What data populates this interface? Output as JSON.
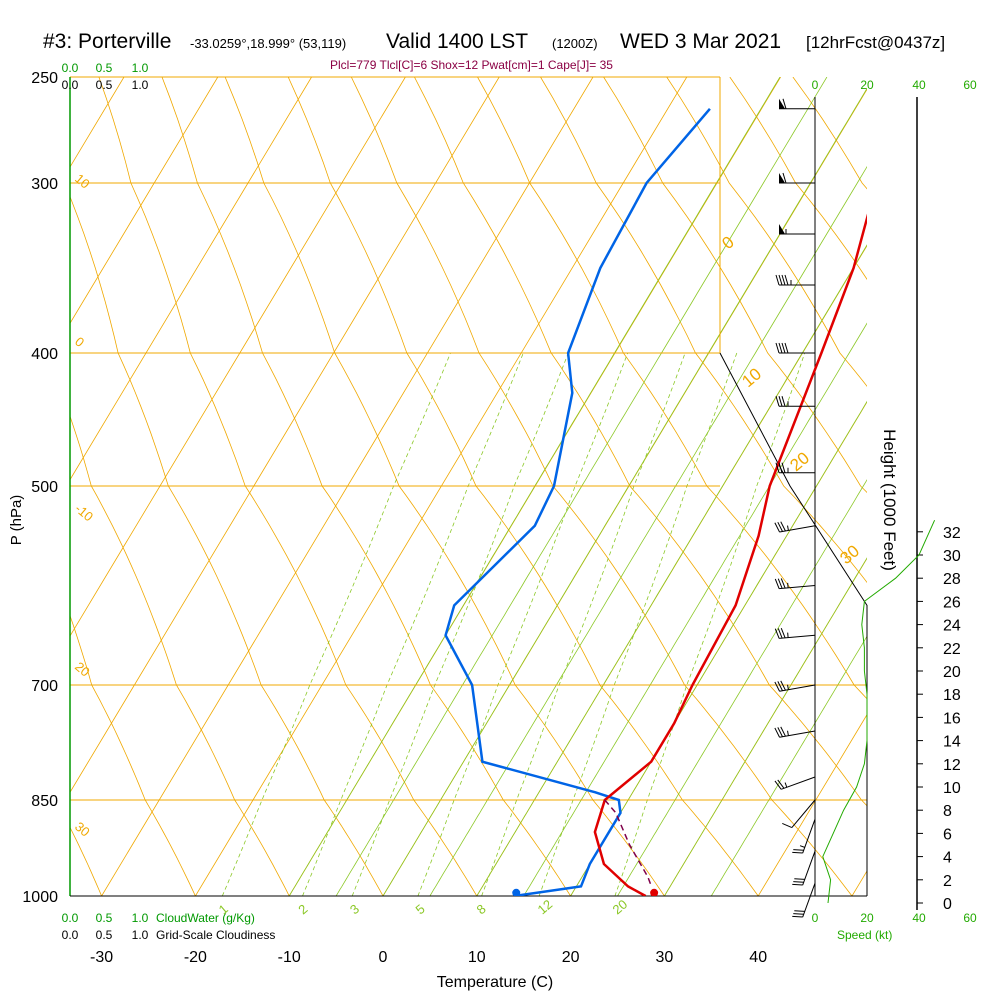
{
  "header": {
    "station": "#3: Porterville",
    "coords": "-33.0259°,18.999° (53,119)",
    "valid": "Valid 1400 LST",
    "zulu": "(1200Z)",
    "date": "WED 3 Mar 2021",
    "forecast": "[12hrFcst@0437z]",
    "params": "Plcl=779 Tlcl[C]=6 Shox=12 Pwat[cm]=1 Cape[J]= 35"
  },
  "colors": {
    "isotherm": "#f0a800",
    "dry_adiabat": "#f0a800",
    "moist_adiabat": "#8cc828",
    "mixing_ratio": "#8cc828",
    "temperature": "#e00000",
    "dewpoint": "#0064e6",
    "parcel": "#80004a",
    "cloud_scale": "#009900",
    "speed_axis": "#22aa00"
  },
  "chart_data": {
    "type": "skew-t",
    "xlabel": "Temperature (C)",
    "ylabel": "P (hPa)",
    "y2label": "Height (1000 Feet)",
    "xticks": [
      "-30",
      "-20",
      "-10",
      "0",
      "10",
      "20",
      "30",
      "40"
    ],
    "xtick_values": [
      -30,
      -20,
      -10,
      0,
      10,
      20,
      30,
      40
    ],
    "pressure_levels": [
      250,
      300,
      400,
      500,
      700,
      850,
      1000
    ],
    "pressure_labels": [
      "250",
      "300",
      "400",
      "500",
      "700",
      "850",
      "1000"
    ],
    "height_labels": [
      "0",
      "2",
      "4",
      "6",
      "8",
      "10",
      "12",
      "14",
      "16",
      "18",
      "20",
      "22",
      "24",
      "26",
      "28",
      "30",
      "32"
    ],
    "dry_adiabat_labels": [
      "-10",
      "0",
      "10",
      "20",
      "30"
    ],
    "dry_adiabat_label_values": [
      -10,
      0,
      10,
      20,
      30
    ],
    "right_adiabat_labels": [
      "0",
      "10",
      "20",
      "30"
    ],
    "mixing_ratio_labels": [
      "1",
      "2",
      "3",
      "5",
      "8",
      "12",
      "20"
    ],
    "mixing_ratio_label_temps": [
      -16,
      -7.5,
      -2,
      5,
      11.5,
      18,
      26
    ],
    "cloudwater_label": "CloudWater (g/Kg)",
    "cloudiness_label": "Grid-Scale Cloudiness",
    "cloud_scale_ticks": [
      "0.0",
      "0.5",
      "1.0"
    ],
    "speed_label": "Speed (kt)",
    "speed_ticks": [
      "0",
      "20",
      "40",
      "60"
    ],
    "temperature": {
      "name": "Temperature",
      "points": [
        [
          265,
          4
        ],
        [
          300,
          7
        ],
        [
          350,
          10
        ],
        [
          400,
          12
        ],
        [
          500,
          15
        ],
        [
          550,
          17
        ],
        [
          620,
          19
        ],
        [
          700,
          19.5
        ],
        [
          750,
          20
        ],
        [
          800,
          20
        ],
        [
          850,
          17.5
        ],
        [
          900,
          18.5
        ],
        [
          950,
          21.5
        ],
        [
          985,
          25.5
        ],
        [
          1000,
          28
        ]
      ]
    },
    "dewpoint": {
      "name": "Dewpoint",
      "points": [
        [
          265,
          -15.5
        ],
        [
          300,
          -17.5
        ],
        [
          350,
          -17
        ],
        [
          400,
          -15
        ],
        [
          430,
          -12
        ],
        [
          500,
          -8
        ],
        [
          540,
          -7.5
        ],
        [
          620,
          -11
        ],
        [
          650,
          -10
        ],
        [
          700,
          -4
        ],
        [
          800,
          2
        ],
        [
          840,
          16
        ],
        [
          850,
          19
        ],
        [
          870,
          20
        ],
        [
          950,
          20
        ],
        [
          985,
          20.5
        ],
        [
          1000,
          14
        ]
      ]
    },
    "parcel": {
      "name": "Parcel",
      "points": [
        [
          850,
          17.5
        ],
        [
          870,
          19.5
        ],
        [
          920,
          23
        ],
        [
          970,
          27
        ],
        [
          985,
          28
        ]
      ]
    },
    "surface_temperature": 28.7,
    "surface_dewpoint": 14,
    "wind_barbs": [
      {
        "p": 265,
        "dir": 270,
        "kt": 60
      },
      {
        "p": 300,
        "dir": 270,
        "kt": 60
      },
      {
        "p": 330,
        "dir": 270,
        "kt": 55
      },
      {
        "p": 360,
        "dir": 270,
        "kt": 45
      },
      {
        "p": 400,
        "dir": 270,
        "kt": 40
      },
      {
        "p": 440,
        "dir": 270,
        "kt": 35
      },
      {
        "p": 490,
        "dir": 270,
        "kt": 35
      },
      {
        "p": 540,
        "dir": 260,
        "kt": 35
      },
      {
        "p": 600,
        "dir": 265,
        "kt": 35
      },
      {
        "p": 650,
        "dir": 265,
        "kt": 35
      },
      {
        "p": 700,
        "dir": 260,
        "kt": 35
      },
      {
        "p": 760,
        "dir": 260,
        "kt": 35
      },
      {
        "p": 820,
        "dir": 250,
        "kt": 25
      },
      {
        "p": 850,
        "dir": 220,
        "kt": 10
      },
      {
        "p": 880,
        "dir": 200,
        "kt": 25
      },
      {
        "p": 930,
        "dir": 200,
        "kt": 30
      },
      {
        "p": 980,
        "dir": 200,
        "kt": 30
      }
    ],
    "wind_speed_profile": [
      [
        0,
        5
      ],
      [
        2,
        6
      ],
      [
        4,
        3
      ],
      [
        6,
        7
      ],
      [
        8,
        11
      ],
      [
        10,
        16
      ],
      [
        12,
        19
      ],
      [
        14,
        20
      ],
      [
        16,
        20
      ],
      [
        18,
        20
      ],
      [
        20,
        19
      ],
      [
        22,
        19
      ],
      [
        24,
        18
      ],
      [
        26,
        19
      ],
      [
        28,
        31
      ],
      [
        30,
        40
      ],
      [
        33,
        46
      ]
    ]
  }
}
